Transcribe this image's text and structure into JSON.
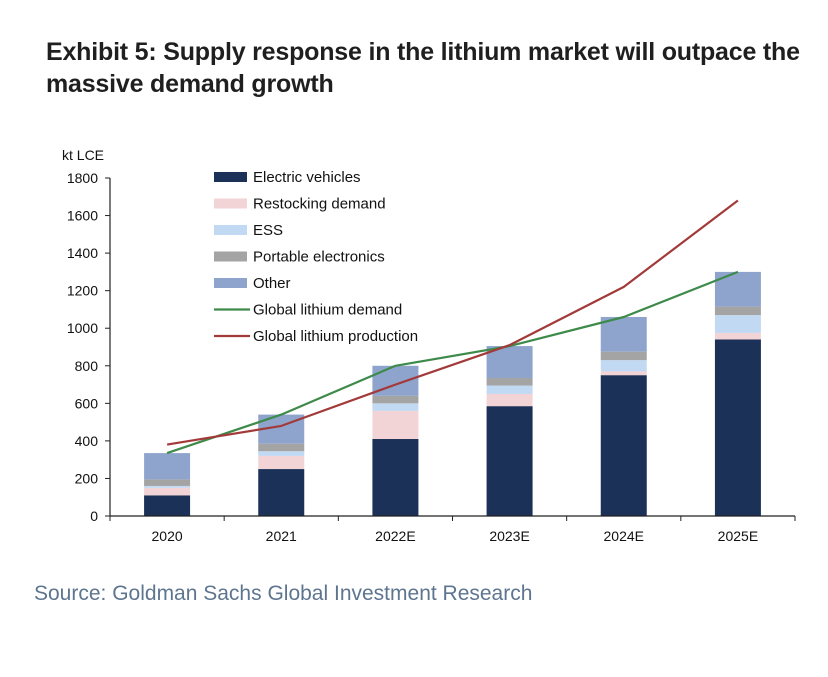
{
  "title": "Exhibit 5: Supply response in the lithium market will outpace the massive demand growth",
  "source": "Source: Goldman Sachs Global Investment Research",
  "chart_data": {
    "type": "bar",
    "stacked": true,
    "unit_label": "kt LCE",
    "categories": [
      "2020",
      "2021",
      "2022E",
      "2023E",
      "2024E",
      "2025E"
    ],
    "ylim": [
      0,
      1800
    ],
    "yticks": [
      0,
      200,
      400,
      600,
      800,
      1000,
      1200,
      1400,
      1600,
      1800
    ],
    "legend_position": "top-left",
    "grid": false,
    "series": [
      {
        "name": "Electric vehicles",
        "kind": "bar",
        "color": "#1b3157",
        "values": [
          110,
          250,
          410,
          585,
          750,
          940
        ]
      },
      {
        "name": "Restocking demand",
        "kind": "bar",
        "color": "#f2d3d6",
        "values": [
          40,
          70,
          150,
          65,
          20,
          35
        ]
      },
      {
        "name": "ESS",
        "kind": "bar",
        "color": "#c2d9f3",
        "values": [
          10,
          25,
          40,
          45,
          60,
          95
        ]
      },
      {
        "name": "Portable electronics",
        "kind": "bar",
        "color": "#a4a4a4",
        "values": [
          35,
          40,
          40,
          40,
          45,
          45
        ]
      },
      {
        "name": "Other",
        "kind": "bar",
        "color": "#8ea4cc",
        "values": [
          140,
          155,
          160,
          170,
          185,
          185
        ]
      },
      {
        "name": "Global lithium demand",
        "kind": "line",
        "color": "#3e8a4b",
        "values": [
          335,
          540,
          800,
          905,
          1060,
          1300
        ]
      },
      {
        "name": "Global lithium production",
        "kind": "line",
        "color": "#a33a3a",
        "values": [
          380,
          480,
          700,
          910,
          1220,
          1680
        ]
      }
    ]
  }
}
